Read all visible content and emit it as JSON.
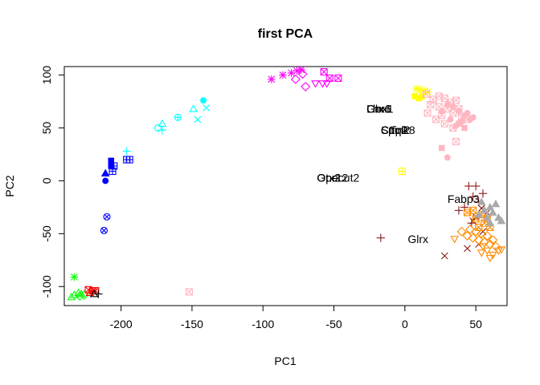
{
  "chart_data": {
    "type": "scatter",
    "title": "first PCA",
    "xlabel": "PC1",
    "ylabel": "PC2",
    "xlim": [
      -240,
      72
    ],
    "ylim": [
      -118,
      108
    ],
    "x_ticks": [
      -200,
      -150,
      -100,
      -50,
      0,
      50
    ],
    "y_ticks": [
      -100,
      -50,
      0,
      50,
      100
    ],
    "grid": false,
    "legend": "none",
    "groups": [
      {
        "color": "#00ff00",
        "marker": "asterisk",
        "points": [
          [
            -233,
            -91
          ]
        ]
      },
      {
        "color": "#00ff00",
        "marker": "triangle",
        "points": [
          [
            -235,
            -110
          ],
          [
            -233,
            -108
          ],
          [
            -230,
            -106
          ],
          [
            -228,
            -107
          ]
        ]
      },
      {
        "color": "#00ff00",
        "marker": "diamond",
        "points": [
          [
            -229,
            -109
          ],
          [
            -226,
            -108
          ]
        ]
      },
      {
        "color": "#ff0000",
        "marker": "x-square",
        "points": [
          [
            -223,
            -103
          ],
          [
            -220,
            -104
          ],
          [
            -218,
            -104
          ]
        ]
      },
      {
        "color": "#ff0000",
        "marker": "triangle",
        "points": [
          [
            -222,
            -106
          ]
        ]
      },
      {
        "color": "#000000",
        "marker": "triangle",
        "points": [
          [
            -219,
            -107
          ]
        ]
      },
      {
        "color": "#000000",
        "marker": "plus",
        "points": [
          [
            -216,
            -107
          ]
        ]
      },
      {
        "color": "#0000ff",
        "marker": "circle-x",
        "points": [
          [
            -212,
            -47
          ],
          [
            -210,
            -34
          ]
        ]
      },
      {
        "color": "#0000ff",
        "marker": "circle-filled",
        "points": [
          [
            -211,
            0
          ]
        ]
      },
      {
        "color": "#0000ff",
        "marker": "triangle-filled",
        "points": [
          [
            -211,
            7
          ]
        ]
      },
      {
        "color": "#0000ff",
        "marker": "square-filled",
        "points": [
          [
            -207,
            14
          ],
          [
            -207,
            19
          ]
        ]
      },
      {
        "color": "#0000ff",
        "marker": "square-plus",
        "points": [
          [
            -206,
            9
          ],
          [
            -205,
            14
          ],
          [
            -196,
            20
          ],
          [
            -194,
            20
          ]
        ]
      },
      {
        "color": "#00ffff",
        "marker": "plus",
        "points": [
          [
            -196,
            28
          ],
          [
            -171,
            48
          ]
        ]
      },
      {
        "color": "#00ffff",
        "marker": "circle",
        "points": [
          [
            -174,
            50
          ]
        ]
      },
      {
        "color": "#00ffff",
        "marker": "triangle",
        "points": [
          [
            -171,
            54
          ],
          [
            -149,
            68
          ]
        ]
      },
      {
        "color": "#00ffff",
        "marker": "circle-plus",
        "points": [
          [
            -160,
            60
          ]
        ]
      },
      {
        "color": "#00ffff",
        "marker": "x",
        "points": [
          [
            -146,
            58
          ],
          [
            -140,
            69
          ]
        ]
      },
      {
        "color": "#00ffff",
        "marker": "circle-filled",
        "points": [
          [
            -142,
            76
          ]
        ]
      },
      {
        "color": "#ff00ff",
        "marker": "asterisk",
        "points": [
          [
            -94,
            96
          ],
          [
            -86,
            100
          ],
          [
            -80,
            102
          ],
          [
            -76,
            104
          ],
          [
            -73,
            105
          ]
        ]
      },
      {
        "color": "#ff00ff",
        "marker": "diamond",
        "points": [
          [
            -77,
            96
          ],
          [
            -72,
            101
          ],
          [
            -70,
            89
          ]
        ]
      },
      {
        "color": "#ff00ff",
        "marker": "triangle-down",
        "points": [
          [
            -63,
            92
          ],
          [
            -58,
            92
          ],
          [
            -55,
            92
          ]
        ]
      },
      {
        "color": "#ff00ff",
        "marker": "x-square",
        "points": [
          [
            -57,
            103
          ],
          [
            -53,
            97
          ],
          [
            -47,
            97
          ]
        ]
      },
      {
        "color": "#ffff00",
        "marker": "asterisk",
        "points": [
          [
            8,
            87
          ],
          [
            11,
            86
          ],
          [
            14,
            85
          ],
          [
            16,
            84
          ]
        ]
      },
      {
        "color": "#ffff00",
        "marker": "square-filled",
        "points": [
          [
            7,
            80
          ],
          [
            10,
            78
          ],
          [
            12,
            80
          ]
        ]
      },
      {
        "color": "#ffff00",
        "marker": "square-plus",
        "points": [
          [
            -2,
            9
          ]
        ]
      },
      {
        "color": "#ffb6c1",
        "marker": "x-square",
        "points": [
          [
            15,
            82
          ],
          [
            20,
            77
          ],
          [
            24,
            80
          ],
          [
            28,
            78
          ],
          [
            32,
            74
          ],
          [
            36,
            76
          ],
          [
            18,
            72
          ],
          [
            24,
            70
          ],
          [
            30,
            68
          ],
          [
            34,
            64
          ],
          [
            40,
            60
          ],
          [
            22,
            58
          ],
          [
            28,
            54
          ],
          [
            34,
            50
          ],
          [
            16,
            64
          ],
          [
            26,
            62
          ],
          [
            38,
            68
          ],
          [
            44,
            58
          ],
          [
            36,
            37
          ],
          [
            -152,
            -105
          ]
        ]
      },
      {
        "color": "#ffb6c1",
        "marker": "circle-filled",
        "points": [
          [
            30,
            72
          ],
          [
            34,
            70
          ],
          [
            38,
            66
          ],
          [
            42,
            62
          ],
          [
            46,
            58
          ],
          [
            40,
            56
          ],
          [
            36,
            52
          ],
          [
            32,
            58
          ],
          [
            26,
            66
          ],
          [
            44,
            64
          ],
          [
            48,
            60
          ],
          [
            30,
            22
          ]
        ]
      },
      {
        "color": "#ffb6c1",
        "marker": "square-filled",
        "points": [
          [
            26,
            31
          ],
          [
            38,
            54
          ],
          [
            42,
            50
          ]
        ]
      },
      {
        "color": "#8b1a1a",
        "marker": "plus",
        "points": [
          [
            45,
            -5
          ],
          [
            50,
            -5
          ],
          [
            55,
            -12
          ],
          [
            48,
            -15
          ],
          [
            52,
            -20
          ],
          [
            42,
            -25
          ],
          [
            38,
            -28
          ],
          [
            -17,
            -54
          ],
          [
            47,
            -40
          ]
        ]
      },
      {
        "color": "#8b1a1a",
        "marker": "x",
        "points": [
          [
            28,
            -71
          ],
          [
            44,
            -64
          ],
          [
            52,
            -60
          ],
          [
            55,
            -48
          ],
          [
            48,
            -38
          ],
          [
            58,
            -30
          ],
          [
            54,
            -26
          ],
          [
            50,
            -34
          ]
        ]
      },
      {
        "color": "#ff8c00",
        "marker": "diamond",
        "points": [
          [
            40,
            -48
          ],
          [
            44,
            -52
          ],
          [
            48,
            -54
          ],
          [
            52,
            -56
          ],
          [
            56,
            -58
          ],
          [
            60,
            -60
          ],
          [
            64,
            -62
          ],
          [
            54,
            -50
          ],
          [
            58,
            -52
          ],
          [
            62,
            -56
          ],
          [
            46,
            -46
          ],
          [
            50,
            -48
          ]
        ]
      },
      {
        "color": "#ff8c00",
        "marker": "triangle-down",
        "points": [
          [
            35,
            -55
          ],
          [
            55,
            -62
          ],
          [
            58,
            -66
          ],
          [
            62,
            -70
          ],
          [
            66,
            -66
          ],
          [
            68,
            -65
          ],
          [
            60,
            -73
          ],
          [
            54,
            -68
          ]
        ]
      },
      {
        "color": "#ff8c00",
        "marker": "x-square",
        "points": [
          [
            44,
            -30
          ],
          [
            50,
            -36
          ],
          [
            56,
            -40
          ],
          [
            60,
            -44
          ],
          [
            52,
            -44
          ],
          [
            48,
            -28
          ],
          [
            58,
            -36
          ],
          [
            54,
            -32
          ]
        ]
      },
      {
        "color": "#a9a9a9",
        "marker": "triangle-filled",
        "points": [
          [
            54,
            -20
          ],
          [
            60,
            -25
          ],
          [
            64,
            -22
          ],
          [
            62,
            -30
          ],
          [
            58,
            -35
          ],
          [
            66,
            -35
          ],
          [
            68,
            -38
          ],
          [
            60,
            -40
          ],
          [
            56,
            -28
          ],
          [
            52,
            -32
          ]
        ]
      }
    ],
    "annotations": [
      {
        "text": "Gbx1",
        "x": -27,
        "y": 68
      },
      {
        "text": "Cnr1",
        "x": -27,
        "y": 68
      },
      {
        "text": "Lhx6",
        "x": -27,
        "y": 68
      },
      {
        "text": "C1ql2",
        "x": -17,
        "y": 48
      },
      {
        "text": "Ctfp2",
        "x": -17,
        "y": 48
      },
      {
        "text": "Spink8",
        "x": -17,
        "y": 48
      },
      {
        "text": "Gpr12",
        "x": -62,
        "y": 3
      },
      {
        "text": "Onecut2",
        "x": -62,
        "y": 3
      },
      {
        "text": "Otx2",
        "x": -62,
        "y": 3
      },
      {
        "text": "Fabp3",
        "x": 30,
        "y": -17
      },
      {
        "text": "Glrx",
        "x": 2,
        "y": -55
      }
    ]
  }
}
